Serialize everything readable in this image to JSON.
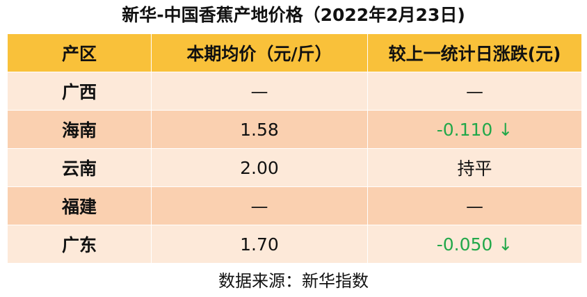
{
  "header": {
    "title": "新华-中国香蕉产地价格（2022年2月23日)"
  },
  "table": {
    "columns": [
      "产区",
      "本期均价（元/斤）",
      "较上一统计日涨跌(元)"
    ],
    "rows": [
      [
        "广西",
        "—",
        "—"
      ],
      [
        "海南",
        "1.58",
        "-0.110 ↓"
      ],
      [
        "云南",
        "2.00",
        "持平"
      ],
      [
        "福建",
        "—",
        "—"
      ],
      [
        "广东",
        "1.70",
        "-0.050 ↓"
      ]
    ]
  },
  "footer": {
    "source": "数据来源：新华指数"
  }
}
